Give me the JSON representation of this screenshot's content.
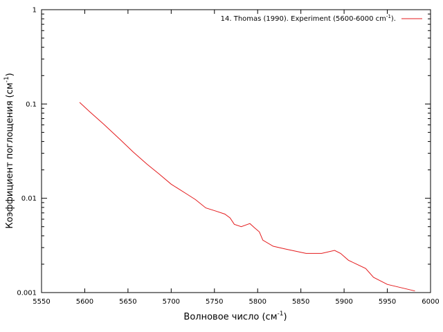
{
  "chart_data": {
    "type": "line",
    "xlabel": "Волновое число (см",
    "xlabel_sup": "-1",
    "xlabel_end": ")",
    "ylabel": "Коэффициент поглощения (см",
    "ylabel_sup": "-1",
    "ylabel_end": ")",
    "xlim": [
      5550,
      6000
    ],
    "ylim": [
      0.001,
      1
    ],
    "yscale": "log",
    "grid": false,
    "legend_position": "top-right",
    "x_ticks": [
      5550,
      5600,
      5650,
      5700,
      5750,
      5800,
      5850,
      5900,
      5950,
      6000
    ],
    "x_tick_labels": [
      "5550",
      "5600",
      "5650",
      "5700",
      "5750",
      "5800",
      "5850",
      "5900",
      "5950",
      "6000"
    ],
    "y_ticks": [
      0.001,
      0.01,
      0.1,
      1
    ],
    "y_tick_labels": [
      "0.001",
      "0.01",
      "0.1",
      "1"
    ],
    "series": [
      {
        "name": "14. Thomas (1990). Experiment (5600-6000 cm",
        "name_sup": "-1",
        "name_end": ").",
        "color": "#e41a1c",
        "x": [
          5594,
          5605,
          5622,
          5641,
          5656,
          5672,
          5686,
          5700,
          5718,
          5728,
          5740,
          5752,
          5762,
          5768,
          5773,
          5781,
          5791,
          5796,
          5802,
          5806,
          5818,
          5832,
          5848,
          5856,
          5874,
          5889,
          5896,
          5905,
          5925,
          5934,
          5950,
          5982
        ],
        "y": [
          0.104,
          0.084,
          0.061,
          0.042,
          0.031,
          0.023,
          0.0181,
          0.0141,
          0.0111,
          0.0097,
          0.0079,
          0.0073,
          0.0068,
          0.0062,
          0.0053,
          0.005,
          0.0054,
          0.0049,
          0.0044,
          0.0036,
          0.0031,
          0.0029,
          0.0027,
          0.0026,
          0.0026,
          0.0028,
          0.0026,
          0.0022,
          0.0018,
          0.00145,
          0.00122,
          0.00104
        ]
      }
    ]
  }
}
